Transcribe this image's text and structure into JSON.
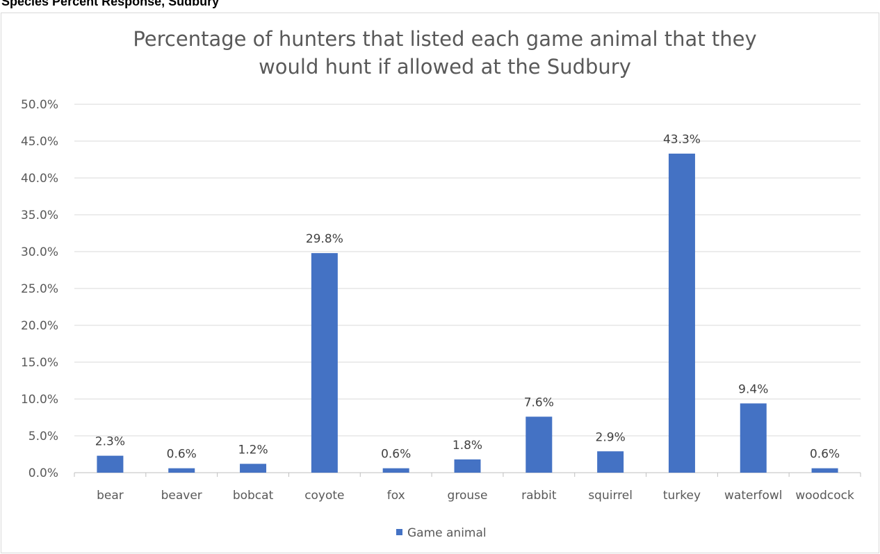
{
  "page": {
    "cropped_header_text": "Species Percent Response, Sudbury"
  },
  "colors": {
    "bar": "#4472c4",
    "grid": "#d9d9d9",
    "axis": "#bfbfbf"
  },
  "chart_data": {
    "type": "bar",
    "title_lines": [
      "Percentage of hunters that listed each game animal that they",
      "would hunt if allowed at the Sudbury"
    ],
    "categories": [
      "bear",
      "beaver",
      "bobcat",
      "coyote",
      "fox",
      "grouse",
      "rabbit",
      "squirrel",
      "turkey",
      "waterfowl",
      "woodcock"
    ],
    "series": [
      {
        "name": "Game animal",
        "values": [
          2.3,
          0.6,
          1.2,
          29.8,
          0.6,
          1.8,
          7.6,
          2.9,
          43.3,
          9.4,
          0.6
        ],
        "labels": [
          "2.3%",
          "0.6%",
          "1.2%",
          "29.8%",
          "0.6%",
          "1.8%",
          "7.6%",
          "2.9%",
          "43.3%",
          "9.4%",
          "0.6%"
        ]
      }
    ],
    "ylim": [
      0,
      50
    ],
    "yticks": [
      0,
      5,
      10,
      15,
      20,
      25,
      30,
      35,
      40,
      45,
      50
    ],
    "ytick_labels": [
      "0.0%",
      "5.0%",
      "10.0%",
      "15.0%",
      "20.0%",
      "25.0%",
      "30.0%",
      "35.0%",
      "40.0%",
      "45.0%",
      "50.0%"
    ],
    "grid": true,
    "legend": "bottom-center"
  }
}
